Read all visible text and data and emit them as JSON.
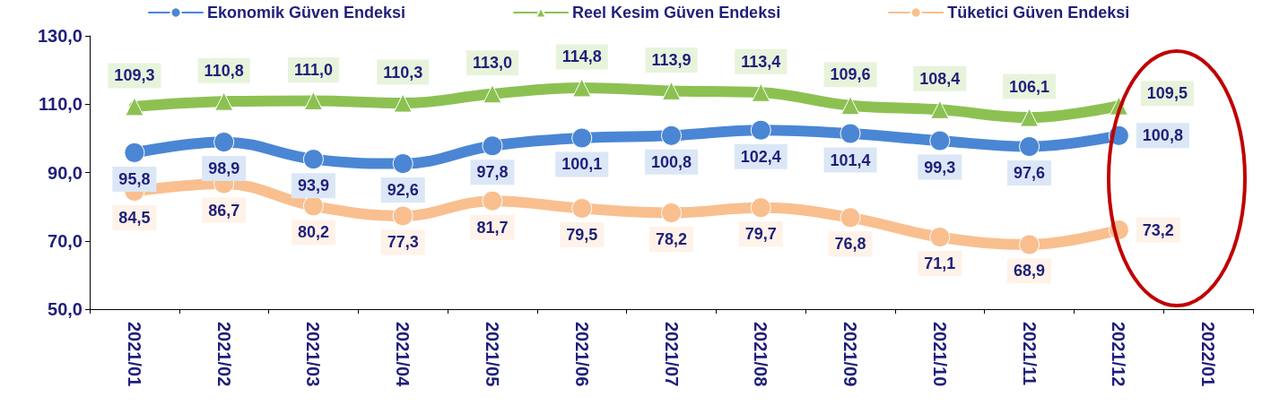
{
  "chart_data": {
    "type": "line",
    "categories": [
      "2021/01",
      "2021/02",
      "2021/03",
      "2021/04",
      "2021/05",
      "2021/06",
      "2021/07",
      "2021/08",
      "2021/09",
      "2021/10",
      "2021/11",
      "2021/12",
      "2022/01"
    ],
    "series": [
      {
        "name": "Ekonomik Güven Endeksi",
        "color": "#4a86d4",
        "marker": "circle",
        "values": [
          95.8,
          98.9,
          93.9,
          92.6,
          97.8,
          100.1,
          100.8,
          102.4,
          101.4,
          99.3,
          97.6,
          100.8,
          null
        ],
        "value_labels": [
          "95,8",
          "98,9",
          "93,9",
          "92,6",
          "97,8",
          "100,1",
          "100,8",
          "102,4",
          "101,4",
          "99,3",
          "97,6",
          "100,8",
          null
        ]
      },
      {
        "name": "Reel Kesim Güven Endeksi",
        "color": "#8cc152",
        "marker": "triangle",
        "values": [
          109.3,
          110.8,
          111.0,
          110.3,
          113.0,
          114.8,
          113.9,
          113.4,
          109.6,
          108.4,
          106.1,
          109.5,
          null
        ],
        "value_labels": [
          "109,3",
          "110,8",
          "111,0",
          "110,3",
          "113,0",
          "114,8",
          "113,9",
          "113,4",
          "109,6",
          "108,4",
          "106,1",
          "109,5",
          null
        ]
      },
      {
        "name": "Tüketici Güven Endeksi",
        "color": "#f9bf8f",
        "marker": "circle",
        "values": [
          84.5,
          86.7,
          80.2,
          77.3,
          81.7,
          79.5,
          78.2,
          79.7,
          76.8,
          71.1,
          68.9,
          73.2,
          null
        ],
        "value_labels": [
          "84,5",
          "86,7",
          "80,2",
          "77,3",
          "81,7",
          "79,5",
          "78,2",
          "79,7",
          "76,8",
          "71,1",
          "68,9",
          "73,2",
          null
        ]
      }
    ],
    "ylim": [
      50,
      130
    ],
    "yticks": [
      {
        "value": 50,
        "label": "50,0"
      },
      {
        "value": 70,
        "label": "70,0"
      },
      {
        "value": 90,
        "label": "90,0"
      },
      {
        "value": 110,
        "label": "110,0"
      },
      {
        "value": 130,
        "label": "130,0"
      }
    ],
    "grid": false,
    "legend": "top",
    "line_style": "solid"
  }
}
